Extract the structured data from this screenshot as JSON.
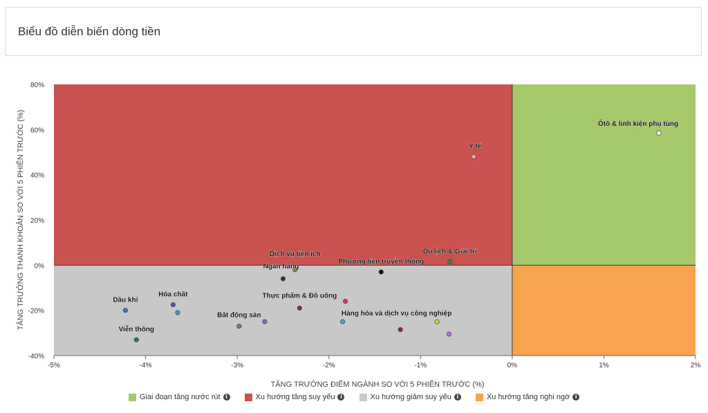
{
  "card": {
    "title": "Biểu đồ diễn biến dòng tiền"
  },
  "chart_data": {
    "type": "scatter",
    "xlabel": "TĂNG TRƯỞNG ĐIỂM NGÀNH SO VỚI 5 PHIÊN TRƯỚC (%)",
    "ylabel": "TĂNG TRƯỞNG THANH KHOẢN SO VỚI 5 PHIÊN TRƯỚC (%)",
    "xlim": [
      -5,
      2
    ],
    "ylim": [
      -40,
      80
    ],
    "xticks": [
      -5,
      -4,
      -3,
      -2,
      -1,
      0,
      1,
      2
    ],
    "yticks": [
      -40,
      -20,
      0,
      20,
      40,
      60,
      80
    ],
    "xtick_labels": [
      "-5%",
      "-4%",
      "-3%",
      "-2%",
      "-1%",
      "0%",
      "1%",
      "2%"
    ],
    "ytick_labels": [
      "-40%",
      "-20%",
      "0%",
      "20%",
      "40%",
      "60%",
      "80%"
    ],
    "quadrants": [
      {
        "name": "Giai đoạn tăng nước rút",
        "color": "#a5c96a",
        "x": "positive",
        "y": "positive"
      },
      {
        "name": "Xu hướng tăng suy yếu",
        "color": "#c9524f",
        "x": "negative",
        "y": "positive"
      },
      {
        "name": "Xu hướng giảm suy yếu",
        "color": "#c8c8c8",
        "x": "negative",
        "y": "negative"
      },
      {
        "name": "Xu hướng tăng nghi ngờ",
        "color": "#f7a34f",
        "x": "positive",
        "y": "negative"
      }
    ],
    "points": [
      {
        "label": "Ôtô & linh kiện phụ tùng",
        "x": 1.6,
        "y": 58.5,
        "color": "#ffffff"
      },
      {
        "label": "Y tế",
        "x": -0.42,
        "y": 48,
        "color": "#f4a7b5"
      },
      {
        "label": "Du lịch & Giải trí",
        "x": -0.68,
        "y": 1.5,
        "color": "#2e8b57"
      },
      {
        "label": "Phương tiện truyền thông",
        "x": -1.43,
        "y": -3,
        "color": "#111111"
      },
      {
        "label": "Dịch vụ tiện ích",
        "x": -2.37,
        "y": -2,
        "color": "#7a8b3a"
      },
      {
        "label": "Ngân hàng",
        "x": -2.5,
        "y": -6,
        "color": "#333333"
      },
      {
        "label": "Thực phẩm & Đồ uống",
        "x": -2.32,
        "y": -19,
        "color": "#8b2e2e"
      },
      {
        "label": "",
        "x": -1.82,
        "y": -16,
        "color": "#e0336b"
      },
      {
        "label": "Dầu khí",
        "x": -4.22,
        "y": -20,
        "color": "#3a6fd6"
      },
      {
        "label": "Hóa chất",
        "x": -3.7,
        "y": -17.5,
        "color": "#5a4fb0"
      },
      {
        "label": "",
        "x": -3.65,
        "y": -21,
        "color": "#2a9fd6"
      },
      {
        "label": "Viễn thông",
        "x": -4.1,
        "y": -33,
        "color": "#2e7d32"
      },
      {
        "label": "Bất động sản",
        "x": -2.98,
        "y": -27,
        "color": "#777777"
      },
      {
        "label": "",
        "x": -2.7,
        "y": -25,
        "color": "#8a5cd6"
      },
      {
        "label": "Hàng hóa và dịch vụ công nghiệp",
        "x": -1.85,
        "y": -25,
        "color": "#30b0c8"
      },
      {
        "label": "",
        "x": -1.22,
        "y": -28.5,
        "color": "#a02040"
      },
      {
        "label": "",
        "x": -0.82,
        "y": -25,
        "color": "#d0d040"
      },
      {
        "label": "",
        "x": -0.69,
        "y": -30.5,
        "color": "#b070e0"
      }
    ]
  },
  "legend": {
    "items": [
      {
        "label": "Giai đoạn tăng nước rút",
        "color": "#a5c96a"
      },
      {
        "label": "Xu hướng tăng suy yếu",
        "color": "#c9524f"
      },
      {
        "label": "Xu hướng giảm suy yếu",
        "color": "#c8c8c8"
      },
      {
        "label": "Xu hướng tăng nghi ngờ",
        "color": "#f7a34f"
      }
    ],
    "info_icon": "info-icon"
  }
}
